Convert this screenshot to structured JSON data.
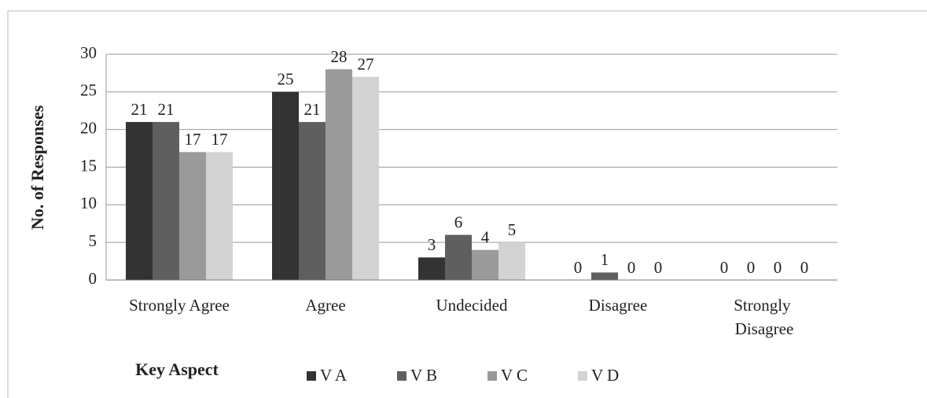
{
  "chart_data": {
    "type": "bar",
    "y_label": "No. of Responses",
    "x_label": "Key Aspect",
    "categories": [
      "Strongly Agree",
      "Agree",
      "Undecided",
      "Disagree",
      "Strongly Disagree"
    ],
    "series": [
      {
        "name": "V A",
        "color": "#333333",
        "values": [
          21,
          25,
          3,
          0,
          0
        ]
      },
      {
        "name": "V B",
        "color": "#5f5f5f",
        "values": [
          21,
          21,
          6,
          1,
          0
        ]
      },
      {
        "name": "V C",
        "color": "#9a9a9a",
        "values": [
          17,
          28,
          4,
          0,
          0
        ]
      },
      {
        "name": "V D",
        "color": "#d3d3d3",
        "values": [
          17,
          27,
          5,
          0,
          0
        ]
      }
    ],
    "ylim": [
      0,
      30
    ],
    "yticks": [
      0,
      5,
      10,
      15,
      20,
      25,
      30
    ],
    "grid": true,
    "legend": "bottom"
  }
}
